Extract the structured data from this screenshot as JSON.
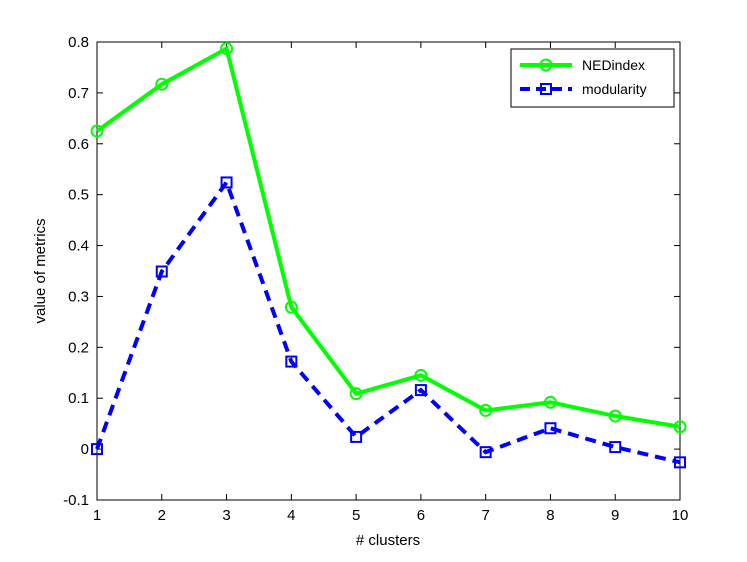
{
  "chart_data": {
    "type": "line",
    "title": "",
    "xlabel": "# clusters",
    "ylabel": "value of metrics",
    "xlim": [
      1,
      10
    ],
    "ylim": [
      -0.1,
      0.8
    ],
    "x": [
      1,
      2,
      3,
      4,
      5,
      6,
      7,
      8,
      9,
      10
    ],
    "xticks": [
      "1",
      "2",
      "3",
      "4",
      "5",
      "6",
      "7",
      "8",
      "9",
      "10"
    ],
    "yticks": [
      "-0.1",
      "0",
      "0.1",
      "0.2",
      "0.3",
      "0.4",
      "0.5",
      "0.6",
      "0.7",
      "0.8"
    ],
    "grid": false,
    "legend_position": "top-right",
    "series": [
      {
        "name": "NEDindex",
        "values": [
          0.625,
          0.717,
          0.787,
          0.279,
          0.109,
          0.145,
          0.076,
          0.092,
          0.065,
          0.044
        ],
        "color": "#00ff00",
        "line_style": "solid",
        "marker": "circle"
      },
      {
        "name": "modularity",
        "values": [
          0.0,
          0.349,
          0.524,
          0.172,
          0.024,
          0.116,
          -0.006,
          0.041,
          0.004,
          -0.026
        ],
        "color": "#0000ff",
        "line_style": "dashed",
        "marker": "square"
      }
    ]
  }
}
